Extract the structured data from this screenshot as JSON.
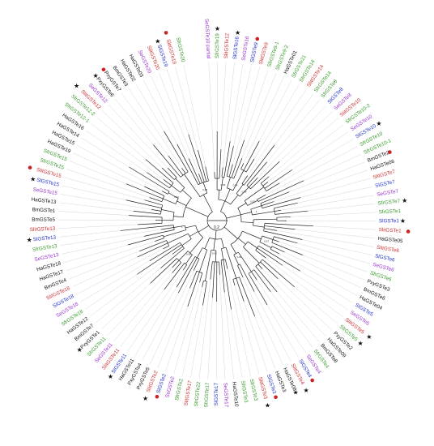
{
  "figure": {
    "scale_bar_label": "0.2",
    "colors": {
      "black": "#111111",
      "green": "#3a9a2e",
      "purple": "#9933cc",
      "blue": "#2233cc",
      "red": "#cc3333",
      "branch": "#222222",
      "guide": "#cfcfcf",
      "dot": "#cc2222"
    },
    "leaves": [
      {
        "label": "SeGSTe10 partial",
        "color": "purple",
        "marker": "none"
      },
      {
        "label": "SfrGSTe19",
        "color": "green",
        "marker": "star"
      },
      {
        "label": "SlitGSTe12",
        "color": "red",
        "marker": "none"
      },
      {
        "label": "SlGSTe16",
        "color": "blue",
        "marker": "star"
      },
      {
        "label": "SeGSTe16",
        "color": "purple",
        "marker": "none"
      },
      {
        "label": "SlGSTe9",
        "color": "blue",
        "marker": "dot"
      },
      {
        "label": "SlitGSTe9",
        "color": "red",
        "marker": "none"
      },
      {
        "label": "SfrGSTe9-1",
        "color": "green",
        "marker": "none"
      },
      {
        "label": "SfrGSTe9-2",
        "color": "green",
        "marker": "none"
      },
      {
        "label": "HaGSTe01",
        "color": "black",
        "marker": "none"
      },
      {
        "label": "SfrGSTe21",
        "color": "green",
        "marker": "none"
      },
      {
        "label": "SfrGSTe14",
        "color": "green",
        "marker": "none"
      },
      {
        "label": "SlitGSTe14",
        "color": "red",
        "marker": "none"
      },
      {
        "label": "SfrGSTe14",
        "color": "green",
        "marker": "none"
      },
      {
        "label": "SfrGSTe8",
        "color": "green",
        "marker": "none"
      },
      {
        "label": "SlGSTe8",
        "color": "blue",
        "marker": "none"
      },
      {
        "label": "SeGSTe8",
        "color": "purple",
        "marker": "none"
      },
      {
        "label": "SlitGSTe10",
        "color": "red",
        "marker": "none"
      },
      {
        "label": "SfrGSTe10-2",
        "color": "green",
        "marker": "none"
      },
      {
        "label": "SeGSTe10",
        "color": "purple",
        "marker": "none"
      },
      {
        "label": "SlGSTe10",
        "color": "blue",
        "marker": "star"
      },
      {
        "label": "SfrGSTe10",
        "color": "green",
        "marker": "none"
      },
      {
        "label": "SfrGSTe10-1",
        "color": "green",
        "marker": "none"
      },
      {
        "label": "BmGSTe2",
        "color": "black",
        "marker": "dot"
      },
      {
        "label": "HaGSTe06",
        "color": "black",
        "marker": "none"
      },
      {
        "label": "SlitGSTe7",
        "color": "red",
        "marker": "none"
      },
      {
        "label": "SlGSTe7",
        "color": "blue",
        "marker": "none"
      },
      {
        "label": "SeGSTe7",
        "color": "purple",
        "marker": "none"
      },
      {
        "label": "SfrGSTe7",
        "color": "green",
        "marker": "star"
      },
      {
        "label": "SfrGSTe1",
        "color": "green",
        "marker": "none"
      },
      {
        "label": "SlGSTe1",
        "color": "blue",
        "marker": "star"
      },
      {
        "label": "SlitGSTe1",
        "color": "red",
        "marker": "dot"
      },
      {
        "label": "HaGSTe05",
        "color": "black",
        "marker": "none"
      },
      {
        "label": "SlitGSTe6",
        "color": "red",
        "marker": "none"
      },
      {
        "label": "SlGSTe6",
        "color": "blue",
        "marker": "none"
      },
      {
        "label": "SeGSTe6",
        "color": "purple",
        "marker": "none"
      },
      {
        "label": "SfrGSTe6",
        "color": "green",
        "marker": "none"
      },
      {
        "label": "PxyGSTe3",
        "color": "black",
        "marker": "none"
      },
      {
        "label": "BmGSTe6",
        "color": "black",
        "marker": "none"
      },
      {
        "label": "HaGSTe04",
        "color": "black",
        "marker": "none"
      },
      {
        "label": "SlGSTe5",
        "color": "blue",
        "marker": "none"
      },
      {
        "label": "SeGSTe5",
        "color": "purple",
        "marker": "none"
      },
      {
        "label": "SlitGSTe5",
        "color": "red",
        "marker": "star"
      },
      {
        "label": "SfrGSTe5",
        "color": "green",
        "marker": "star"
      },
      {
        "label": "PxyGSTe2",
        "color": "black",
        "marker": "none"
      },
      {
        "label": "HaGSTe09",
        "color": "black",
        "marker": "none"
      },
      {
        "label": "BmGSTe8",
        "color": "black",
        "marker": "none"
      },
      {
        "label": "SfrGSTe4",
        "color": "green",
        "marker": "none"
      },
      {
        "label": "SeGSTe4",
        "color": "purple",
        "marker": "none"
      },
      {
        "label": "SlGSTe4",
        "color": "blue",
        "marker": "dot"
      },
      {
        "label": "SlitGSTe4",
        "color": "red",
        "marker": "star"
      },
      {
        "label": "HaGSTe08",
        "color": "black",
        "marker": "star"
      },
      {
        "label": "HaGSTe3",
        "color": "black",
        "marker": "none"
      },
      {
        "label": "SlGSTe3",
        "color": "blue",
        "marker": "dot"
      },
      {
        "label": "SlitGSTe3",
        "color": "red",
        "marker": "star"
      },
      {
        "label": "SfrGSTe3",
        "color": "green",
        "marker": "none"
      },
      {
        "label": "SfrGSTe3",
        "color": "green",
        "marker": "none"
      },
      {
        "label": "HaGSTe10",
        "color": "black",
        "marker": "none"
      },
      {
        "label": "SeGSTe17",
        "color": "purple",
        "marker": "none"
      },
      {
        "label": "SlGSTe17",
        "color": "blue",
        "marker": "none"
      },
      {
        "label": "SfrGSTe17",
        "color": "green",
        "marker": "none"
      },
      {
        "label": "SfrGSTe22",
        "color": "green",
        "marker": "none"
      },
      {
        "label": "SlitGSTe17",
        "color": "red",
        "marker": "none"
      },
      {
        "label": "SfrGSTe2",
        "color": "green",
        "marker": "none"
      },
      {
        "label": "SeGSTe2",
        "color": "purple",
        "marker": "none"
      },
      {
        "label": "SlGSTe2",
        "color": "blue",
        "marker": "dot"
      },
      {
        "label": "SlitGSTe2",
        "color": "red",
        "marker": "star"
      },
      {
        "label": "PxyGSTe5",
        "color": "black",
        "marker": "none"
      },
      {
        "label": "PxyGSTe4",
        "color": "black",
        "marker": "none"
      },
      {
        "label": "HaGSTe11",
        "color": "black",
        "marker": "none"
      },
      {
        "label": "SlGSTe11",
        "color": "blue",
        "marker": "star"
      },
      {
        "label": "SlitGSTe11",
        "color": "red",
        "marker": "none"
      },
      {
        "label": "SeGSTe11",
        "color": "purple",
        "marker": "none"
      },
      {
        "label": "SfrGSTe11",
        "color": "green",
        "marker": "none"
      },
      {
        "label": "PxyGSTe1",
        "color": "black",
        "marker": "star"
      },
      {
        "label": "BmGSTe7",
        "color": "black",
        "marker": "none"
      },
      {
        "label": "HaGSTe12",
        "color": "black",
        "marker": "none"
      },
      {
        "label": "SfrGSTe18",
        "color": "green",
        "marker": "none"
      },
      {
        "label": "SeGSTe18",
        "color": "purple",
        "marker": "none"
      },
      {
        "label": "SlGSTe18",
        "color": "blue",
        "marker": "none"
      },
      {
        "label": "SlitGSTe18",
        "color": "red",
        "marker": "none"
      },
      {
        "label": "BmGSTe4",
        "color": "black",
        "marker": "none"
      },
      {
        "label": "HaGSTe17",
        "color": "black",
        "marker": "none"
      },
      {
        "label": "HaGSTe18",
        "color": "black",
        "marker": "none"
      },
      {
        "label": "SeGSTe13",
        "color": "purple",
        "marker": "none"
      },
      {
        "label": "SfrGSTe13",
        "color": "green",
        "marker": "none"
      },
      {
        "label": "SlGSTe13",
        "color": "blue",
        "marker": "star"
      },
      {
        "label": "SlitGSTe13",
        "color": "red",
        "marker": "none"
      },
      {
        "label": "BmGSTe5",
        "color": "black",
        "marker": "none"
      },
      {
        "label": "BmGSTe1",
        "color": "black",
        "marker": "none"
      },
      {
        "label": "HaGSTe13",
        "color": "black",
        "marker": "none"
      },
      {
        "label": "SeGSTe15",
        "color": "purple",
        "marker": "none"
      },
      {
        "label": "SlGSTe15",
        "color": "blue",
        "marker": "star"
      },
      {
        "label": "SlitGSTe15",
        "color": "red",
        "marker": "dot"
      },
      {
        "label": "SfrGSTe15",
        "color": "green",
        "marker": "none"
      },
      {
        "label": "SfrGSTe15",
        "color": "green",
        "marker": "none"
      },
      {
        "label": "HaGSTe19",
        "color": "black",
        "marker": "none"
      },
      {
        "label": "HaGSTe15",
        "color": "black",
        "marker": "none"
      },
      {
        "label": "HaGSTe14",
        "color": "black",
        "marker": "none"
      },
      {
        "label": "HaGSTe16",
        "color": "black",
        "marker": "none"
      },
      {
        "label": "SfrGSTe12-1",
        "color": "green",
        "marker": "none"
      },
      {
        "label": "SfrGSTe12-2",
        "color": "green",
        "marker": "none"
      },
      {
        "label": "SlitGSTe12",
        "color": "red",
        "marker": "star"
      },
      {
        "label": "SeGSTe12",
        "color": "purple",
        "marker": "none"
      },
      {
        "label": "PxyGSTe6",
        "color": "black",
        "marker": "star"
      },
      {
        "label": "PxyGSTe7",
        "color": "black",
        "marker": "dot"
      },
      {
        "label": "BmGSTe3",
        "color": "black",
        "marker": "none"
      },
      {
        "label": "HaGSTe02",
        "color": "black",
        "marker": "none"
      },
      {
        "label": "HaGSTe03",
        "color": "black",
        "marker": "none"
      },
      {
        "label": "SeGSTe20",
        "color": "purple",
        "marker": "none"
      },
      {
        "label": "SlitGSTe20",
        "color": "red",
        "marker": "none"
      },
      {
        "label": "SlGSTe19",
        "color": "blue",
        "marker": "star"
      },
      {
        "label": "SlitGSTe19",
        "color": "red",
        "marker": "dot"
      },
      {
        "label": "SfrGSTe20",
        "color": "green",
        "marker": "none"
      }
    ],
    "support_values": [
      "0.99",
      "0.98",
      "1",
      "0.97",
      "0.95",
      "0.92",
      "0.96",
      "1",
      "0.93",
      "0.98",
      "0.94",
      "0.92"
    ]
  }
}
